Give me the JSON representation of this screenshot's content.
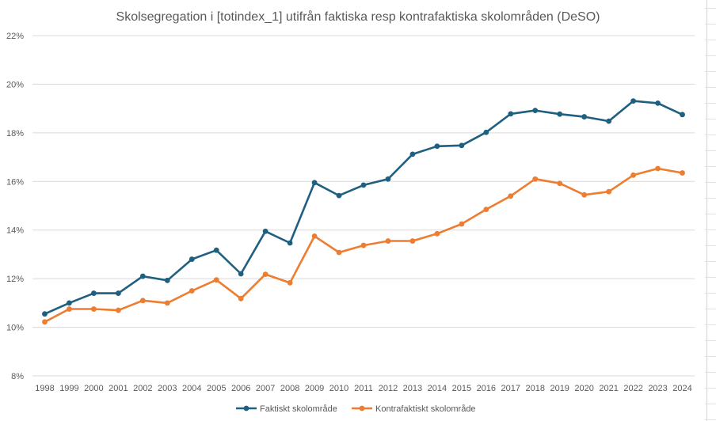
{
  "chart_data": {
    "type": "line",
    "title": "Skolsegregation i [totindex_1] utifrån faktiska resp kontrafaktiska skolområden (DeSO)",
    "xlabel": "",
    "ylabel": "",
    "ylim": [
      0.08,
      0.22
    ],
    "y_ticks": [
      "8%",
      "10%",
      "12%",
      "14%",
      "16%",
      "18%",
      "20%",
      "22%"
    ],
    "y_tick_values": [
      0.08,
      0.1,
      0.12,
      0.14,
      0.16,
      0.18,
      0.2,
      0.22
    ],
    "grid": true,
    "legend_position": "bottom",
    "categories": [
      "1998",
      "1999",
      "2000",
      "2001",
      "2002",
      "2003",
      "2004",
      "2005",
      "2006",
      "2007",
      "2008",
      "2009",
      "2010",
      "2011",
      "2012",
      "2013",
      "2014",
      "2015",
      "2016",
      "2017",
      "2018",
      "2019",
      "2020",
      "2021",
      "2022",
      "2023",
      "2024"
    ],
    "series": [
      {
        "name": "Faktiskt skolområde",
        "color": "#1f5f7f",
        "values": [
          0.1055,
          0.11,
          0.114,
          0.114,
          0.121,
          0.1193,
          0.128,
          0.1317,
          0.122,
          0.1395,
          0.1347,
          0.1595,
          0.1542,
          0.1585,
          0.161,
          0.1712,
          0.1745,
          0.1748,
          0.1802,
          0.1878,
          0.1892,
          0.1877,
          0.1866,
          0.1848,
          0.1931,
          0.1922,
          0.1875
        ]
      },
      {
        "name": "Kontrafaktiskt skolområde",
        "color": "#ed7d31",
        "values": [
          0.1022,
          0.1075,
          0.1075,
          0.107,
          0.111,
          0.11,
          0.115,
          0.1195,
          0.1118,
          0.1218,
          0.1183,
          0.1375,
          0.1308,
          0.1337,
          0.1355,
          0.1355,
          0.1385,
          0.1425,
          0.1485,
          0.154,
          0.161,
          0.1592,
          0.1545,
          0.1558,
          0.1626,
          0.1653,
          0.1635
        ]
      }
    ]
  }
}
